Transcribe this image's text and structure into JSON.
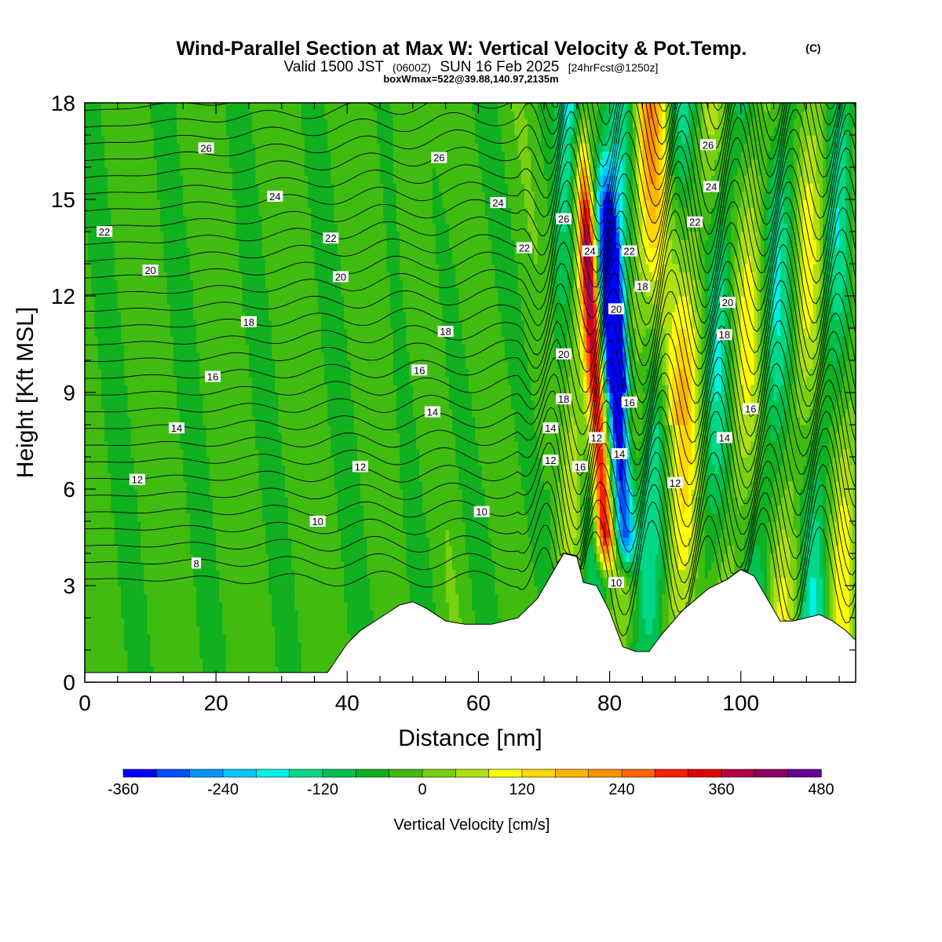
{
  "header": {
    "title": "Wind-Parallel Section at Max W: Vertical Velocity & Pot.Temp.",
    "copyright": "(C)",
    "valid_prefix": "Valid 1500 JST",
    "valid_utc": "(0600Z)",
    "valid_date": "SUN 16 Feb 2025",
    "forecast": "[24hrFcst@1250z]",
    "boxinfo": "boxWmax=522@39.88,140.97,2135m"
  },
  "chart_data": {
    "type": "contour cross-section",
    "xlabel": "Distance [nm]",
    "ylabel": "Height [Kft MSL]",
    "xlim": [
      0,
      117.5
    ],
    "ylim": [
      0,
      18
    ],
    "x_ticks": [
      0,
      20,
      40,
      60,
      80,
      100
    ],
    "y_ticks": [
      0,
      3,
      6,
      9,
      12,
      15,
      18
    ],
    "colorbar": {
      "label": "Vertical Velocity [cm/s]",
      "min": -360,
      "step": 40,
      "tick_labels": [
        "-360",
        "-240",
        "-120",
        "0",
        "120",
        "240",
        "360",
        "480"
      ],
      "colors": [
        "#0000ff",
        "#0050ff",
        "#0096ff",
        "#00c8ff",
        "#00f0e6",
        "#00d888",
        "#00c050",
        "#10b020",
        "#40bc10",
        "#78d010",
        "#b0e010",
        "#ffff00",
        "#ffd800",
        "#ffb400",
        "#ff9000",
        "#ff6400",
        "#ff1e00",
        "#e00000",
        "#b40040",
        "#8c0064",
        "#640096"
      ]
    },
    "terrain": [
      [
        0,
        0.3
      ],
      [
        10,
        0.3
      ],
      [
        20,
        0.3
      ],
      [
        30,
        0.3
      ],
      [
        37,
        0.3
      ],
      [
        38,
        0.6
      ],
      [
        39,
        0.9
      ],
      [
        40,
        1.2
      ],
      [
        42,
        1.6
      ],
      [
        45,
        2.0
      ],
      [
        48,
        2.4
      ],
      [
        50,
        2.5
      ],
      [
        52,
        2.3
      ],
      [
        55,
        1.9
      ],
      [
        58,
        1.8
      ],
      [
        62,
        1.8
      ],
      [
        66,
        2.0
      ],
      [
        69,
        2.6
      ],
      [
        71,
        3.3
      ],
      [
        73,
        4.0
      ],
      [
        75,
        3.9
      ],
      [
        76,
        3.1
      ],
      [
        78,
        3.0
      ],
      [
        80,
        2.2
      ],
      [
        82,
        1.1
      ],
      [
        84,
        0.95
      ],
      [
        86,
        0.95
      ],
      [
        88,
        1.5
      ],
      [
        91,
        2.2
      ],
      [
        95,
        2.9
      ],
      [
        98,
        3.2
      ],
      [
        100,
        3.5
      ],
      [
        102,
        3.3
      ],
      [
        104,
        2.6
      ],
      [
        106,
        1.9
      ],
      [
        108,
        1.9
      ],
      [
        112,
        2.1
      ],
      [
        114,
        1.9
      ],
      [
        116,
        1.6
      ],
      [
        117.5,
        1.3
      ]
    ],
    "contour_labels": [
      {
        "text": "26",
        "x": 18.5,
        "y": 16.6
      },
      {
        "text": "26",
        "x": 54,
        "y": 16.3
      },
      {
        "text": "26",
        "x": 73,
        "y": 14.4
      },
      {
        "text": "26",
        "x": 95,
        "y": 16.7
      },
      {
        "text": "24",
        "x": 29,
        "y": 15.1
      },
      {
        "text": "24",
        "x": 63,
        "y": 14.9
      },
      {
        "text": "24",
        "x": 77,
        "y": 13.4
      },
      {
        "text": "24",
        "x": 95.5,
        "y": 15.4
      },
      {
        "text": "22",
        "x": 3,
        "y": 14.0
      },
      {
        "text": "22",
        "x": 37.5,
        "y": 13.8
      },
      {
        "text": "22",
        "x": 67,
        "y": 13.5
      },
      {
        "text": "22",
        "x": 83,
        "y": 13.4
      },
      {
        "text": "22",
        "x": 93,
        "y": 14.3
      },
      {
        "text": "20",
        "x": 10,
        "y": 12.8
      },
      {
        "text": "20",
        "x": 39,
        "y": 12.6
      },
      {
        "text": "20",
        "x": 81,
        "y": 11.6
      },
      {
        "text": "20",
        "x": 73,
        "y": 10.2
      },
      {
        "text": "20",
        "x": 98,
        "y": 11.8
      },
      {
        "text": "18",
        "x": 25,
        "y": 11.2
      },
      {
        "text": "18",
        "x": 55,
        "y": 10.9
      },
      {
        "text": "18",
        "x": 73,
        "y": 8.8
      },
      {
        "text": "18",
        "x": 85,
        "y": 12.3
      },
      {
        "text": "18",
        "x": 97.5,
        "y": 10.8
      },
      {
        "text": "16",
        "x": 19.5,
        "y": 9.5
      },
      {
        "text": "16",
        "x": 51,
        "y": 9.7
      },
      {
        "text": "16",
        "x": 75.5,
        "y": 6.7
      },
      {
        "text": "16",
        "x": 83,
        "y": 8.7
      },
      {
        "text": "16",
        "x": 101.5,
        "y": 8.5
      },
      {
        "text": "14",
        "x": 14,
        "y": 7.9
      },
      {
        "text": "14",
        "x": 53,
        "y": 8.4
      },
      {
        "text": "14",
        "x": 71,
        "y": 7.9
      },
      {
        "text": "14",
        "x": 81.5,
        "y": 7.1
      },
      {
        "text": "14",
        "x": 97.5,
        "y": 7.6
      },
      {
        "text": "12",
        "x": 8,
        "y": 6.3
      },
      {
        "text": "12",
        "x": 42,
        "y": 6.7
      },
      {
        "text": "12",
        "x": 71,
        "y": 6.9
      },
      {
        "text": "12",
        "x": 78,
        "y": 7.6
      },
      {
        "text": "12",
        "x": 90,
        "y": 6.2
      },
      {
        "text": "10",
        "x": 35.5,
        "y": 5.0
      },
      {
        "text": "10",
        "x": 60.5,
        "y": 5.3
      },
      {
        "text": "10",
        "x": 81,
        "y": 3.1
      },
      {
        "text": "8",
        "x": 17,
        "y": 3.7
      }
    ]
  }
}
